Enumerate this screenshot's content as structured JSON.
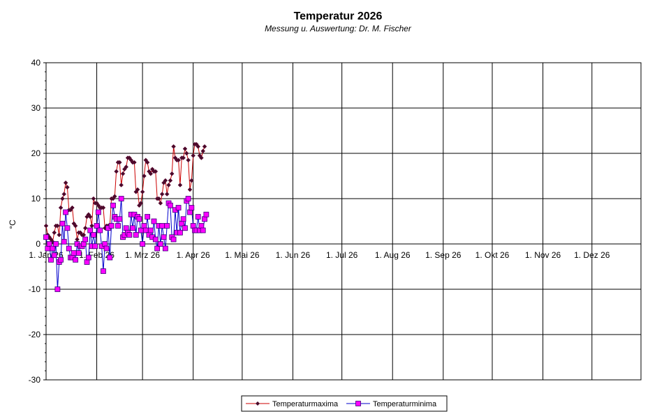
{
  "chart_data": {
    "type": "line",
    "title": "Temperatur 2026",
    "subtitle": "Messung  u.  Auswertung:  Dr.  M.  Fischer",
    "ylabel": "°C",
    "xlabel": "",
    "ylim": [
      -30,
      40
    ],
    "yticks": [
      40,
      30,
      20,
      10,
      0,
      -10,
      -20,
      -30
    ],
    "xlim": [
      "2026-01-01",
      "2026-12-31"
    ],
    "xtick_labels": [
      "1. Jan 26",
      "1. Feb 26",
      "1. Mrz 26",
      "1. Apr 26",
      "1. Mai 26",
      "1. Jun 26",
      "1. Jul 26",
      "1. Aug 26",
      "1. Sep 26",
      "1. Okt 26",
      "1. Nov 26",
      "1. Dez 26"
    ],
    "xtick_dates": [
      "2026-01-01",
      "2026-02-01",
      "2026-03-01",
      "2026-04-01",
      "2026-05-01",
      "2026-06-01",
      "2026-07-01",
      "2026-08-01",
      "2026-09-01",
      "2026-10-01",
      "2026-11-01",
      "2026-12-01"
    ],
    "grid": true,
    "legend_position": "bottom-center",
    "series": [
      {
        "name": "Temperaturmaxima",
        "color": "#cc0000",
        "marker_color": "#4a0a2a",
        "x_start": "2026-01-01",
        "values": [
          4,
          2,
          1.5,
          1,
          0.5,
          2.5,
          4,
          4,
          2,
          8,
          10,
          11,
          13.5,
          12.5,
          7.5,
          7.5,
          8,
          4.5,
          4,
          1,
          2.5,
          2.5,
          2,
          2,
          3.5,
          6,
          6.5,
          6,
          4,
          10,
          9,
          9,
          8.5,
          8,
          8,
          8,
          3.5,
          4,
          4,
          4,
          10,
          10,
          10.5,
          16,
          18,
          18,
          13,
          15.5,
          16.5,
          17,
          19,
          19,
          18.5,
          18,
          18,
          11.5,
          12,
          8.5,
          9,
          11.5,
          15,
          18.5,
          18,
          16,
          15.5,
          16.5,
          16,
          16,
          10,
          10,
          9,
          11,
          13.5,
          14,
          11,
          13,
          14,
          15.5,
          21.5,
          19,
          18.5,
          18.5,
          13,
          19,
          19,
          21,
          20,
          18.5,
          12,
          14,
          19.5,
          22,
          22,
          21.5,
          19.5,
          19,
          20.5,
          21.5
        ]
      },
      {
        "name": "Temperaturminima",
        "color": "#0000cc",
        "marker_color": "#ff00ff",
        "x_start": "2026-01-01",
        "values": [
          1.5,
          -1,
          0,
          -3.5,
          -1,
          -2.5,
          0,
          -10,
          -4,
          -3.5,
          4.5,
          0.5,
          7,
          3.5,
          -1,
          -3,
          -3,
          -2,
          -3.5,
          0,
          -2,
          -0.5,
          -0.5,
          0,
          1,
          -4,
          -3,
          3,
          -0.5,
          2,
          -0.5,
          4,
          7,
          3,
          -0.5,
          -6,
          0,
          -1,
          3.5,
          -3,
          4,
          8.5,
          6,
          5.5,
          4,
          5.5,
          10,
          1.5,
          2,
          3.5,
          2.5,
          2,
          6.5,
          3.5,
          6.5,
          2,
          6,
          5.5,
          3,
          0,
          4,
          3,
          6,
          2,
          3,
          1.5,
          5,
          1,
          -1,
          4,
          0,
          4,
          1.5,
          -1,
          4,
          9,
          8.5,
          1.5,
          1,
          7.5,
          2.5,
          8,
          2.5,
          4.5,
          5.5,
          3.5,
          9.5,
          10,
          7,
          8,
          4,
          3,
          3,
          6,
          3,
          4,
          3,
          5.5,
          6.5
        ]
      }
    ]
  }
}
